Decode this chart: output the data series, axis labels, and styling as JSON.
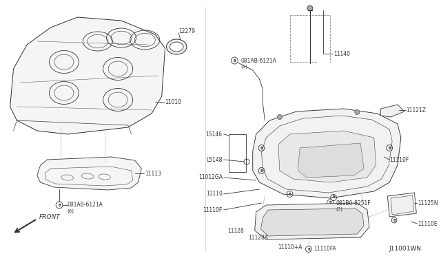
{
  "bg_color": "#ffffff",
  "line_color": "#333333",
  "gray_color": "#888888",
  "label_color": "#000000",
  "diagram_id": "J11001WN",
  "lw": 0.6,
  "fs": 5.5,
  "block_label": "12279",
  "block_part": "11010",
  "guard_part": "11113",
  "bolt_left": "081AB-6121A",
  "bolt_left_note": "(6)",
  "bolt_right": "081AB-6121A",
  "bolt_right_note": "(1)",
  "dipstick_label": "11140",
  "upper_pan_label": "11121Z",
  "label_15146": "15146",
  "label_L5148": "L5148",
  "label_11012GA": "11012GA",
  "label_11110": "11110",
  "label_11110F_r": "11110F",
  "label_11110F_l": "11110F",
  "label_bolt_pan": "081B0-8251F",
  "label_bolt_pan_note": "(3)",
  "label_11128": "11128",
  "label_11128A": "11128A",
  "label_11110pA": "11110+A",
  "label_11110FA": "11110FA",
  "label_11125N": "11125N",
  "label_11110E": "11110E",
  "front_label": "FRONT"
}
